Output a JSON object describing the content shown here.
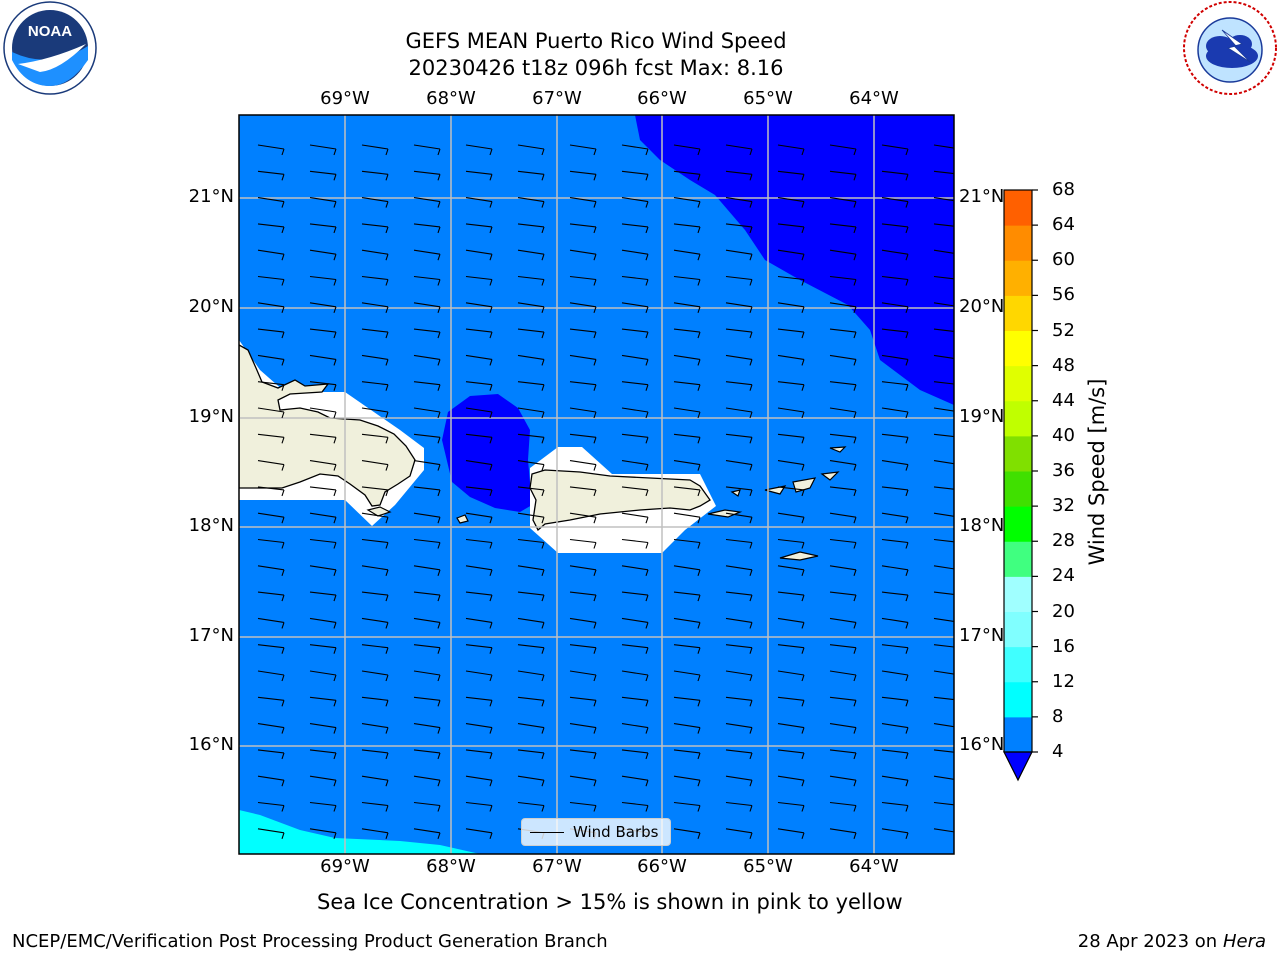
{
  "title_line1": "GEFS MEAN Puerto Rico Wind Speed",
  "title_line2": "20230426 t18z 096h fcst   Max: 8.16",
  "subnote": "Sea Ice Concentration > 15% is shown in pink to yellow",
  "footer_left": "NCEP/EMC/Verification Post Processing Product Generation Branch",
  "footer_date": "28 Apr 2023 on ",
  "footer_host": "Hera",
  "legend_label": "Wind Barbs",
  "colorbar_label": "Wind Speed [m/s]",
  "lon_labels": [
    "69°W",
    "68°W",
    "67°W",
    "66°W",
    "65°W",
    "64°W"
  ],
  "lat_labels": [
    "21°N",
    "20°N",
    "19°N",
    "18°N",
    "17°N",
    "16°N"
  ],
  "colorbar_ticks": [
    "68",
    "64",
    "60",
    "56",
    "52",
    "48",
    "44",
    "40",
    "36",
    "32",
    "28",
    "24",
    "20",
    "16",
    "12",
    "8",
    "4"
  ],
  "colorbar_colors": [
    "#0000ff",
    "#0080ff",
    "#00ffff",
    "#40ffff",
    "#80ffff",
    "#a0ffff",
    "#40ff80",
    "#00ff00",
    "#40e000",
    "#80e000",
    "#c0ff00",
    "#e0ff00",
    "#ffff00",
    "#ffd700",
    "#ffb000",
    "#ff8c00",
    "#ff6000",
    "#ff3000",
    "#ff0000"
  ],
  "colors": {
    "ocean_main": "#0080ff",
    "ocean_low": "#0000ff",
    "ocean_high": "#00ffff",
    "land": "#f0f0dc"
  },
  "logos": {
    "left": "noaa-logo",
    "right": "nws-logo"
  }
}
